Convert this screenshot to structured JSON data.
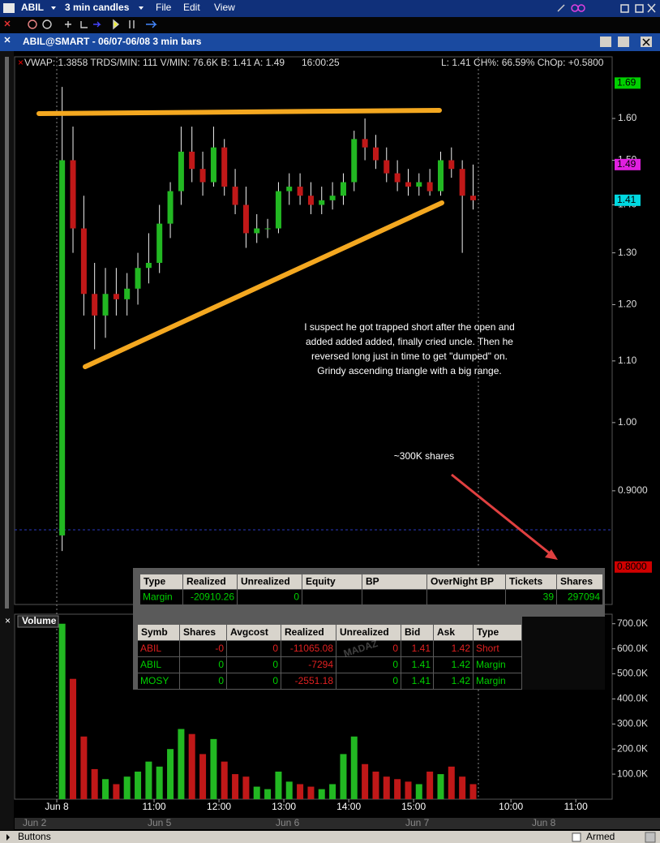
{
  "toolbar": {
    "symbol": "ABIL",
    "bar_size": "3 min candles",
    "menus": [
      "File",
      "Edit",
      "View"
    ]
  },
  "window_title": "ABIL@SMART - 06/07-06/08 3 min bars",
  "info_line": {
    "left": "VWAP: 1.3858 TRDS/MIN: 111 V/MIN: 76.6K B: 1.41 A: 1.49",
    "time": "16:00:25",
    "right": "L: 1.41 CH%: 66.59% ChOp: +0.5800"
  },
  "chart_data": [
    {
      "type": "candlestick",
      "log_scale": true,
      "up_color": "#22b822",
      "down_color": "#c01818",
      "x": [
        9.583,
        9.75,
        9.917,
        10.083,
        10.25,
        10.417,
        10.583,
        10.75,
        10.917,
        11.083,
        11.25,
        11.417,
        11.583,
        11.75,
        11.917,
        12.083,
        12.25,
        12.417,
        12.583,
        12.75,
        12.917,
        13.083,
        13.25,
        13.417,
        13.583,
        13.75,
        13.917,
        14.083,
        14.25,
        14.417,
        14.583,
        14.75,
        14.917,
        15.083,
        15.25,
        15.417,
        15.583,
        15.75,
        15.917
      ],
      "open": [
        0.84,
        1.5,
        1.35,
        1.22,
        1.18,
        1.22,
        1.21,
        1.23,
        1.27,
        1.28,
        1.36,
        1.43,
        1.52,
        1.48,
        1.45,
        1.53,
        1.44,
        1.4,
        1.34,
        1.35,
        1.35,
        1.43,
        1.44,
        1.42,
        1.4,
        1.41,
        1.42,
        1.45,
        1.55,
        1.53,
        1.5,
        1.47,
        1.45,
        1.44,
        1.45,
        1.43,
        1.5,
        1.48,
        1.42
      ],
      "high": [
        1.68,
        1.58,
        1.42,
        1.28,
        1.27,
        1.27,
        1.26,
        1.3,
        1.34,
        1.4,
        1.45,
        1.58,
        1.58,
        1.52,
        1.58,
        1.55,
        1.48,
        1.44,
        1.38,
        1.37,
        1.45,
        1.47,
        1.47,
        1.45,
        1.44,
        1.45,
        1.47,
        1.57,
        1.6,
        1.56,
        1.53,
        1.5,
        1.48,
        1.47,
        1.48,
        1.52,
        1.53,
        1.5,
        1.49
      ],
      "low": [
        0.82,
        1.3,
        1.18,
        1.12,
        1.14,
        1.18,
        1.18,
        1.2,
        1.24,
        1.26,
        1.33,
        1.4,
        1.45,
        1.42,
        1.44,
        1.42,
        1.38,
        1.31,
        1.32,
        1.33,
        1.34,
        1.4,
        1.4,
        1.38,
        1.38,
        1.39,
        1.4,
        1.43,
        1.5,
        1.48,
        1.45,
        1.43,
        1.42,
        1.42,
        1.42,
        1.42,
        1.46,
        1.3,
        1.39
      ],
      "close": [
        1.5,
        1.35,
        1.22,
        1.18,
        1.22,
        1.21,
        1.23,
        1.27,
        1.28,
        1.36,
        1.43,
        1.52,
        1.48,
        1.45,
        1.53,
        1.44,
        1.4,
        1.34,
        1.35,
        1.35,
        1.43,
        1.44,
        1.42,
        1.4,
        1.41,
        1.42,
        1.45,
        1.55,
        1.53,
        1.5,
        1.47,
        1.45,
        1.44,
        1.45,
        1.43,
        1.5,
        1.48,
        1.42,
        1.41
      ],
      "ylim": [
        0.755,
        1.76
      ],
      "yticks": [
        {
          "value": 1.6,
          "label": "1.60"
        },
        {
          "value": 1.5,
          "label": "1.50"
        },
        {
          "value": 1.4,
          "label": "1.40"
        },
        {
          "value": 1.3,
          "label": "1.30"
        },
        {
          "value": 1.2,
          "label": "1.20"
        },
        {
          "value": 1.1,
          "label": "1.10"
        },
        {
          "value": 1.0,
          "label": "1.00"
        },
        {
          "value": 0.9,
          "label": "0.9000"
        }
      ],
      "price_tags": [
        {
          "value": 1.69,
          "label": "1.69",
          "color": "#00d000"
        },
        {
          "value": 1.49,
          "label": "1.49",
          "color": "#e020e0"
        },
        {
          "value": 1.41,
          "label": "1.41",
          "color": "#00d8e0"
        },
        {
          "value": 0.8,
          "label": "0.8000",
          "color": "#d00000"
        }
      ],
      "xlim": [
        8.85,
        18.06
      ],
      "xticks": [
        {
          "value": 9.5,
          "label": "Jun 8"
        },
        {
          "value": 11,
          "label": "11:00"
        },
        {
          "value": 12,
          "label": "12:00"
        },
        {
          "value": 13,
          "label": "13:00"
        },
        {
          "value": 14,
          "label": "14:00"
        },
        {
          "value": 15,
          "label": "15:00"
        },
        {
          "value": 16.5,
          "label": "10:00"
        },
        {
          "value": 17.5,
          "label": "11:00"
        }
      ]
    },
    {
      "type": "bar",
      "title": "Volume",
      "values": [
        700000,
        480000,
        250000,
        120000,
        80000,
        60000,
        90000,
        110000,
        150000,
        130000,
        200000,
        280000,
        260000,
        180000,
        240000,
        150000,
        100000,
        90000,
        50000,
        40000,
        110000,
        70000,
        60000,
        50000,
        40000,
        60000,
        180000,
        250000,
        140000,
        110000,
        90000,
        80000,
        70000,
        60000,
        110000,
        100000,
        130000,
        90000,
        60000
      ],
      "ylim": [
        0,
        738000
      ],
      "yticks": [
        {
          "value": 100000,
          "label": "100.0K"
        },
        {
          "value": 200000,
          "label": "200.0K"
        },
        {
          "value": 300000,
          "label": "300.0K"
        },
        {
          "value": 400000,
          "label": "400.0K"
        },
        {
          "value": 500000,
          "label": "500.0K"
        },
        {
          "value": 600000,
          "label": "600.0K"
        },
        {
          "value": 700000,
          "label": "700.0K"
        }
      ]
    }
  ],
  "annotations": {
    "note": [
      "I suspect he got trapped short after the open and",
      "added added added, finally cried uncle. Then he",
      "reversed long just in time to get \"dumped\" on.",
      "Grindy ascending triangle with a big range."
    ],
    "arrow_label": "~300K shares"
  },
  "account_table": {
    "columns": [
      "Type",
      "Realized",
      "Unrealized",
      "Equity",
      "BP",
      "OverNight BP",
      "Tickets",
      "Shares"
    ],
    "rows": [
      [
        "Margin",
        "-20910.26",
        "0",
        null,
        null,
        null,
        "39",
        "297094"
      ]
    ]
  },
  "positions_table": {
    "columns": [
      "Symb",
      "Shares",
      "Avgcost",
      "Realized",
      "Unrealized",
      "Bid",
      "Ask",
      "Type"
    ],
    "rows": [
      [
        "ABIL",
        "-0",
        "0",
        "-11065.08",
        "0",
        "1.41",
        "1.42",
        "Short"
      ],
      [
        "ABIL",
        "0",
        "0",
        "-7294",
        "0",
        "1.41",
        "1.42",
        "Margin"
      ],
      [
        "MOSY",
        "0",
        "0",
        "-2551.18",
        "0",
        "1.41",
        "1.42",
        "Margin"
      ]
    ]
  },
  "watermark": "MADAZ",
  "navigator_dates": [
    "Jun 2",
    "Jun 5",
    "Jun 6",
    "Jun 7",
    "Jun 8"
  ],
  "status": {
    "left": "Buttons",
    "right": "Armed"
  }
}
